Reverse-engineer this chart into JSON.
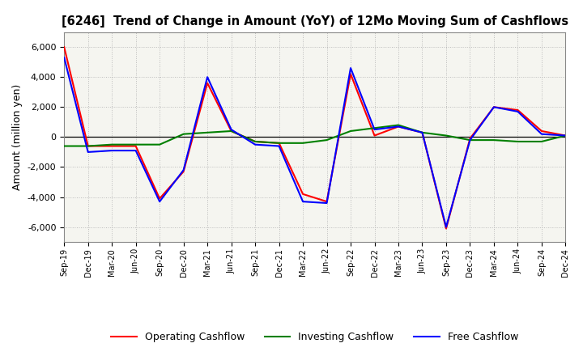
{
  "title": "[6246]  Trend of Change in Amount (YoY) of 12Mo Moving Sum of Cashflows",
  "ylabel": "Amount (million yen)",
  "x_labels": [
    "Sep-19",
    "Dec-19",
    "Mar-20",
    "Jun-20",
    "Sep-20",
    "Dec-20",
    "Mar-21",
    "Jun-21",
    "Sep-21",
    "Dec-21",
    "Mar-22",
    "Jun-22",
    "Sep-22",
    "Dec-22",
    "Mar-23",
    "Jun-23",
    "Sep-23",
    "Dec-23",
    "Mar-24",
    "Jun-24",
    "Sep-24",
    "Dec-24"
  ],
  "operating": [
    6000,
    -600,
    -600,
    -600,
    -4100,
    -2300,
    3600,
    400,
    -300,
    -400,
    -3800,
    -4300,
    4200,
    100,
    700,
    300,
    -6100,
    -100,
    2000,
    1800,
    400,
    100
  ],
  "investing": [
    -600,
    -600,
    -500,
    -500,
    -500,
    200,
    300,
    400,
    -300,
    -400,
    -400,
    -200,
    400,
    600,
    800,
    300,
    100,
    -200,
    -200,
    -300,
    -300,
    100
  ],
  "free": [
    5300,
    -1000,
    -900,
    -900,
    -4300,
    -2200,
    4000,
    500,
    -500,
    -600,
    -4300,
    -4400,
    4600,
    500,
    700,
    300,
    -6000,
    -200,
    2000,
    1700,
    200,
    100
  ],
  "ylim": [
    -7000,
    7000
  ],
  "yticks": [
    -6000,
    -4000,
    -2000,
    0,
    2000,
    4000,
    6000
  ],
  "operating_color": "#ff0000",
  "investing_color": "#008000",
  "free_color": "#0000ff",
  "bg_color": "#ffffff",
  "plot_bg_color": "#f5f5f0",
  "grid_color": "#aaaaaa",
  "legend_labels": [
    "Operating Cashflow",
    "Investing Cashflow",
    "Free Cashflow"
  ]
}
